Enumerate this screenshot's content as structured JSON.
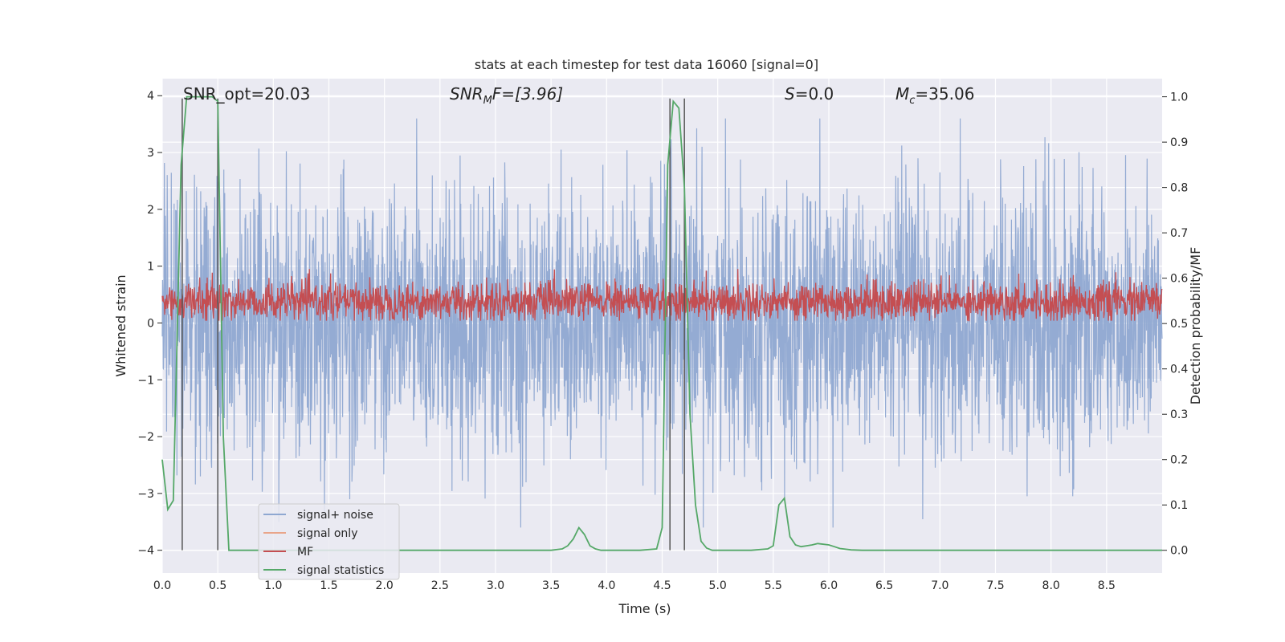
{
  "chart_data": {
    "type": "line",
    "title": "stats at each timestep for test data 16060 [signal=0]",
    "xlabel": "Time (s)",
    "ylabel": "Whitened strain",
    "y2label": "Detection probability/MF",
    "xlim": [
      0.0,
      9.0
    ],
    "ylim": [
      -4.4,
      4.3
    ],
    "y2lim": [
      -0.05,
      1.04
    ],
    "grid": true,
    "legend_placement": "lower-left",
    "x_ticks": [
      "0.0",
      "0.5",
      "1.0",
      "1.5",
      "2.0",
      "2.5",
      "3.0",
      "3.5",
      "4.0",
      "4.5",
      "5.0",
      "5.5",
      "6.0",
      "6.5",
      "7.0",
      "7.5",
      "8.0",
      "8.5"
    ],
    "y_ticks": [
      "4",
      "3",
      "2",
      "1",
      "0",
      "−1",
      "−2",
      "−3",
      "−4"
    ],
    "y2_ticks": [
      "1.0",
      "0.9",
      "0.8",
      "0.7",
      "0.6",
      "0.5",
      "0.4",
      "0.3",
      "0.2",
      "0.1",
      "0.0"
    ],
    "annotations": {
      "snr_opt": "SNR_opt=20.03",
      "snr_mf_base": "SNR",
      "snr_mf_sub": "M",
      "snr_mf_rest": "F=[3.96]",
      "s_base": "S",
      "s_rest": "=0.0",
      "mc_base": "M",
      "mc_sub": "c",
      "mc_rest": "=35.06"
    },
    "vertical_markers_x": [
      0.18,
      0.5,
      4.57,
      4.7
    ],
    "series": [
      {
        "name": "signal+ noise",
        "color": "#8fa8d1",
        "description": "whitened strain noise, roughly ±2 to ±3.5"
      },
      {
        "name": "signal only",
        "color": "#e9a58a"
      },
      {
        "name": "MF",
        "color": "#c44e52",
        "description": "matched filter output, about 0.05 to 0.9 on left axis"
      },
      {
        "name": "signal statistics",
        "color": "#55a868",
        "axis": "right",
        "x": [
          0.0,
          0.05,
          0.1,
          0.17,
          0.22,
          0.25,
          0.3,
          0.35,
          0.4,
          0.45,
          0.5,
          0.55,
          0.6,
          0.65,
          0.7,
          1.0,
          2.0,
          3.0,
          3.5,
          3.6,
          3.65,
          3.7,
          3.75,
          3.8,
          3.85,
          3.9,
          3.95,
          4.0,
          4.3,
          4.45,
          4.5,
          4.55,
          4.6,
          4.65,
          4.7,
          4.75,
          4.8,
          4.85,
          4.9,
          4.95,
          5.0,
          5.3,
          5.45,
          5.5,
          5.55,
          5.6,
          5.65,
          5.7,
          5.75,
          5.8,
          5.85,
          5.9,
          6.0,
          6.05,
          6.1,
          6.2,
          6.3,
          7.0,
          8.0,
          9.0
        ],
        "y": [
          0.2,
          0.09,
          0.11,
          0.85,
          1.0,
          1.0,
          1.0,
          1.0,
          1.0,
          1.0,
          0.99,
          0.25,
          0.0,
          0.0,
          0.0,
          0.0,
          0.0,
          0.0,
          0.0,
          0.003,
          0.01,
          0.025,
          0.05,
          0.035,
          0.01,
          0.003,
          0.0,
          0.0,
          0.0,
          0.003,
          0.05,
          0.85,
          0.99,
          0.975,
          0.8,
          0.3,
          0.1,
          0.02,
          0.005,
          0.0,
          0.0,
          0.0,
          0.003,
          0.01,
          0.1,
          0.115,
          0.03,
          0.012,
          0.008,
          0.01,
          0.012,
          0.015,
          0.012,
          0.008,
          0.004,
          0.001,
          0.0,
          0.0,
          0.0,
          0.0
        ]
      }
    ]
  }
}
